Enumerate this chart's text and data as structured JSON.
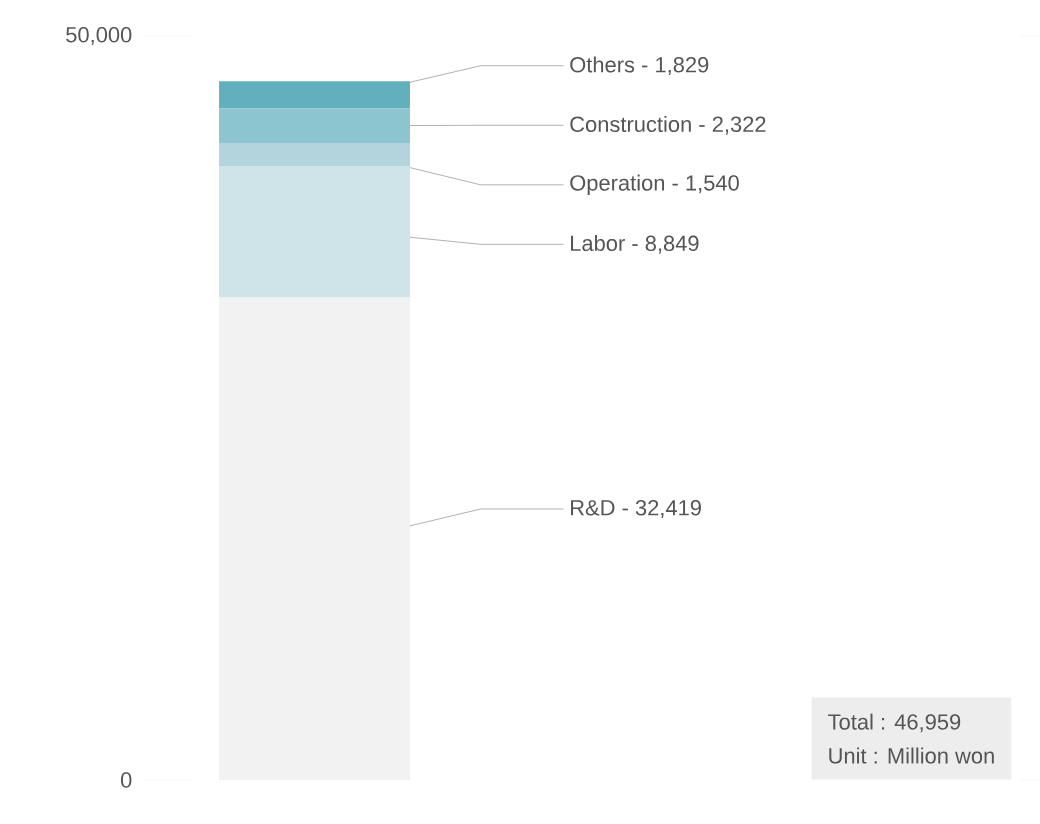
{
  "chart_data": {
    "type": "bar",
    "stacked": true,
    "categories": [
      null
    ],
    "ylim": [
      0,
      50000
    ],
    "yticks": [
      0,
      {
        "value": 50000,
        "label": "50,000"
      }
    ],
    "series": [
      {
        "name": "R&D - 32,419",
        "color": "#f2f2f2",
        "values": [
          32419
        ]
      },
      {
        "name": "Labor - 8,849",
        "color": "#cfe4e9",
        "values": [
          8849
        ]
      },
      {
        "name": "Operation - 1,540",
        "color": "#b3d4dc",
        "values": [
          1540
        ]
      },
      {
        "name": "Construction - 2,322",
        "color": "#8cc4cf",
        "values": [
          2322
        ]
      },
      {
        "name": "Others - 1,829",
        "color": "#62b0bd",
        "values": [
          1829
        ]
      }
    ],
    "annotations": [
      "Total : 46,959",
      "Unit : Million won"
    ]
  }
}
